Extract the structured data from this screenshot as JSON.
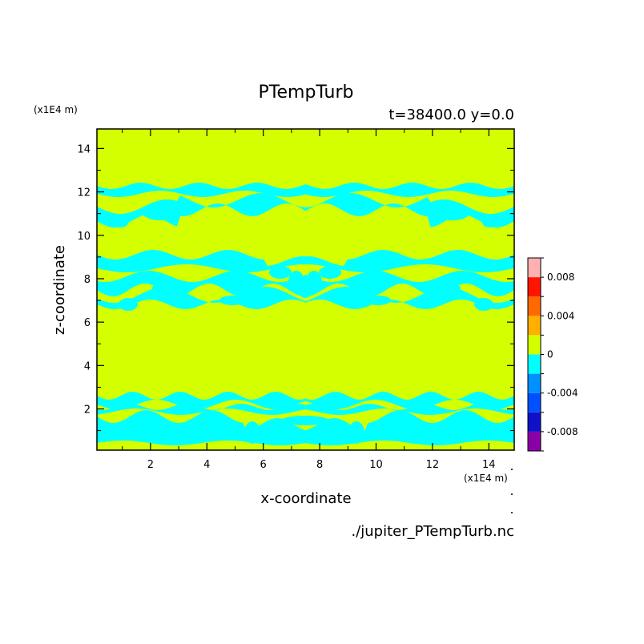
{
  "chart_data": {
    "type": "heatmap",
    "title": "PTempTurb",
    "subtitle": "t=38400.0 y=0.0",
    "xlabel": "x-coordinate",
    "ylabel": "z-coordinate",
    "x_units": "(x1E4 m)",
    "y_units": "(x1E4 m)",
    "xlim": [
      0.1,
      14.9
    ],
    "ylim": [
      0.1,
      14.9
    ],
    "x_ticks": [
      "2",
      "4",
      "6",
      "8",
      "10",
      "12",
      "14"
    ],
    "y_ticks": [
      "2",
      "4",
      "6",
      "8",
      "10",
      "12",
      "14"
    ],
    "grid": false,
    "background_color": "#d4ff00",
    "negative_color": "#00ffff",
    "colorbar": {
      "levels": [
        -0.01,
        -0.008,
        -0.006,
        -0.004,
        -0.002,
        0,
        0.002,
        0.004,
        0.006,
        0.008,
        0.01
      ],
      "colors": [
        "#8a00a8",
        "#1010c8",
        "#0050ff",
        "#0090ff",
        "#00ffff",
        "#d4ff00",
        "#ffb000",
        "#ff6a00",
        "#ff1400",
        "#ffb0b0"
      ],
      "tick_labels": [
        "0.008",
        "0.004",
        "0",
        "-0.004",
        "-0.008"
      ],
      "tick_values": [
        0.008,
        0.004,
        0,
        -0.004,
        -0.008
      ]
    },
    "negative_regions": [
      {
        "name": "lower-band",
        "z_range": [
          0.3,
          2.7
        ],
        "approx_value": -0.001
      },
      {
        "name": "middle-band",
        "z_range": [
          6.0,
          9.3
        ],
        "approx_value": -0.001
      },
      {
        "name": "upper-band",
        "z_range": [
          9.7,
          12.3
        ],
        "approx_value": -0.001
      }
    ]
  },
  "source_file": "./jupiter_PTempTurb.nc"
}
